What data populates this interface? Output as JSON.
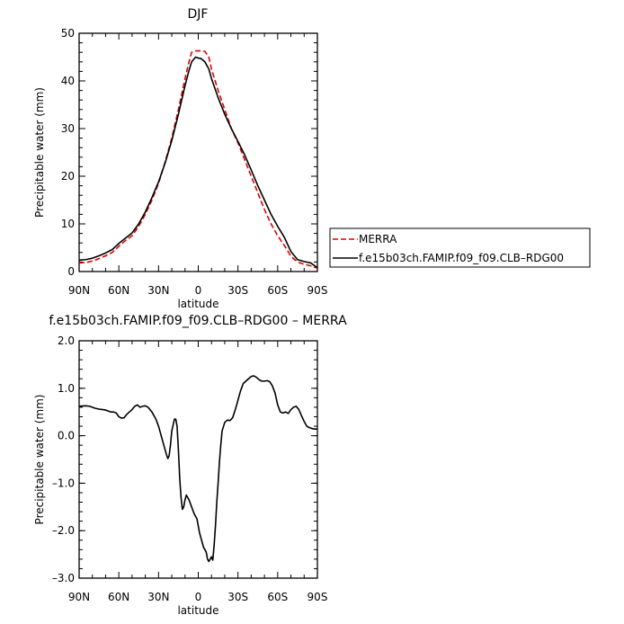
{
  "chart_data": [
    {
      "type": "line",
      "title": "DJF",
      "xlabel": "latitude",
      "ylabel": "Precipitable water (mm)",
      "xlim": [
        90,
        -90
      ],
      "ylim": [
        0,
        50
      ],
      "x_ticks": [
        90,
        60,
        30,
        0,
        -30,
        -60,
        -90
      ],
      "x_tick_labels": [
        "90N",
        "60N",
        "30N",
        "0",
        "30S",
        "60S",
        "90S"
      ],
      "y_ticks": [
        0,
        10,
        20,
        30,
        40,
        50
      ],
      "y_tick_labels": [
        "0",
        "10",
        "20",
        "30",
        "40",
        "50"
      ],
      "legend_position": "right",
      "grid": false,
      "series": [
        {
          "name": "MERRA",
          "color": "#e00000",
          "dash": true,
          "x": [
            90,
            85,
            80,
            75,
            70,
            65,
            60,
            55,
            50,
            45,
            40,
            35,
            30,
            25,
            20,
            15,
            10,
            7,
            5,
            2,
            0,
            -2,
            -5,
            -8,
            -10,
            -15,
            -20,
            -25,
            -30,
            -35,
            -40,
            -45,
            -50,
            -55,
            -60,
            -65,
            -70,
            -75,
            -80,
            -85,
            -90
          ],
          "y": [
            1.8,
            1.9,
            2.2,
            2.7,
            3.3,
            4.0,
            5.3,
            6.5,
            7.5,
            9.5,
            12,
            15,
            18.5,
            23,
            28,
            34,
            40.5,
            44,
            46,
            46.3,
            46.3,
            46.3,
            46.2,
            45,
            42.5,
            38,
            34,
            30,
            27,
            23.5,
            20,
            16.5,
            13,
            10,
            7.5,
            5.5,
            3.2,
            2.0,
            1.5,
            1.2,
            0.7
          ]
        },
        {
          "name": "f.e15b03ch.FAMIP.f09_f09.CLB–RDG00",
          "color": "#000000",
          "dash": false,
          "x": [
            90,
            85,
            80,
            75,
            70,
            65,
            60,
            55,
            50,
            45,
            40,
            35,
            30,
            25,
            20,
            15,
            10,
            7,
            5,
            2,
            0,
            -2,
            -5,
            -8,
            -10,
            -15,
            -20,
            -25,
            -30,
            -35,
            -40,
            -45,
            -50,
            -55,
            -60,
            -65,
            -70,
            -75,
            -80,
            -85,
            -90
          ],
          "y": [
            2.4,
            2.5,
            2.8,
            3.3,
            3.9,
            4.6,
            5.9,
            7.0,
            8.1,
            10,
            12.5,
            15.5,
            18.8,
            22.8,
            27.5,
            33,
            39,
            42.2,
            44,
            45,
            44.8,
            44.7,
            44,
            42.5,
            40.5,
            36.5,
            33,
            30,
            27.3,
            24.5,
            21.3,
            18,
            15,
            12,
            9.5,
            7.2,
            4.2,
            2.5,
            2.1,
            1.8,
            0.8
          ]
        }
      ]
    },
    {
      "type": "line",
      "title": "f.e15b03ch.FAMIP.f09_f09.CLB–RDG00  –  MERRA",
      "xlabel": "latitude",
      "ylabel": "Precipitable water (mm)",
      "xlim": [
        90,
        -90
      ],
      "ylim": [
        -3.0,
        2.0
      ],
      "x_ticks": [
        90,
        60,
        30,
        0,
        -30,
        -60,
        -90
      ],
      "x_tick_labels": [
        "90N",
        "60N",
        "30N",
        "0",
        "30S",
        "60S",
        "90S"
      ],
      "y_ticks": [
        -3,
        -2,
        -1,
        0,
        1,
        2
      ],
      "y_tick_labels": [
        "–3.0",
        "–2.0",
        "–1.0",
        "0.0",
        "1.0",
        "2.0"
      ],
      "grid": false,
      "series": [
        {
          "color": "#000000",
          "x": [
            90,
            85,
            82,
            78,
            75,
            72,
            70,
            68,
            66,
            64,
            62,
            60,
            58,
            56,
            54,
            52,
            50,
            48,
            46,
            44,
            42,
            40,
            38,
            35,
            32,
            30,
            28,
            26,
            24,
            23,
            22,
            21,
            20,
            18,
            17,
            16,
            15,
            14,
            13,
            12,
            11,
            10,
            9,
            8,
            7,
            5,
            3,
            1,
            0,
            -1,
            -2,
            -3,
            -4,
            -5,
            -6,
            -7,
            -8,
            -9,
            -10,
            -11,
            -12,
            -13,
            -14,
            -15,
            -16,
            -17,
            -18,
            -20,
            -22,
            -24,
            -26,
            -28,
            -30,
            -32,
            -34,
            -36,
            -38,
            -40,
            -42,
            -44,
            -46,
            -48,
            -50,
            -52,
            -54,
            -56,
            -58,
            -60,
            -62,
            -64,
            -66,
            -68,
            -70,
            -72,
            -74,
            -76,
            -78,
            -80,
            -82,
            -84,
            -86,
            -88,
            -90
          ],
          "y": [
            0.62,
            0.63,
            0.62,
            0.58,
            0.56,
            0.55,
            0.54,
            0.52,
            0.5,
            0.5,
            0.48,
            0.4,
            0.37,
            0.38,
            0.45,
            0.5,
            0.55,
            0.62,
            0.65,
            0.6,
            0.62,
            0.63,
            0.6,
            0.5,
            0.35,
            0.2,
            0.0,
            -0.2,
            -0.4,
            -0.48,
            -0.42,
            -0.2,
            0.1,
            0.35,
            0.35,
            0.2,
            -0.3,
            -0.9,
            -1.3,
            -1.55,
            -1.5,
            -1.35,
            -1.25,
            -1.3,
            -1.35,
            -1.5,
            -1.65,
            -1.75,
            -1.9,
            -2.05,
            -2.15,
            -2.25,
            -2.35,
            -2.4,
            -2.45,
            -2.6,
            -2.65,
            -2.6,
            -2.55,
            -2.62,
            -2.3,
            -1.9,
            -1.4,
            -1.0,
            -0.55,
            -0.2,
            0.1,
            0.28,
            0.33,
            0.32,
            0.38,
            0.55,
            0.75,
            0.95,
            1.1,
            1.15,
            1.2,
            1.25,
            1.26,
            1.23,
            1.18,
            1.15,
            1.15,
            1.16,
            1.14,
            1.05,
            0.9,
            0.65,
            0.5,
            0.48,
            0.5,
            0.47,
            0.55,
            0.6,
            0.62,
            0.55,
            0.42,
            0.3,
            0.2,
            0.17,
            0.15,
            0.14,
            0.14
          ]
        }
      ]
    }
  ]
}
